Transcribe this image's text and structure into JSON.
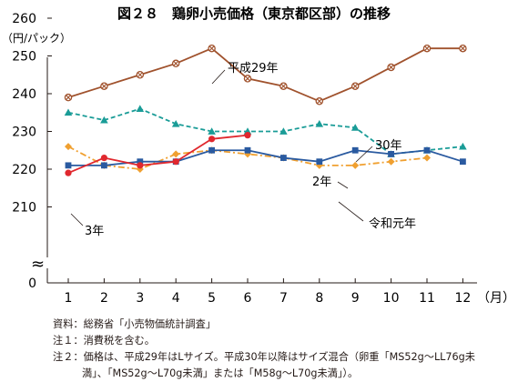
{
  "chart_data": {
    "type": "line",
    "title": "図２８　鶏卵小売価格（東京都区部）の推移",
    "ylabel": "（円/パック）",
    "xunit": "（月）",
    "categories": [
      "1",
      "2",
      "3",
      "4",
      "5",
      "6",
      "7",
      "8",
      "9",
      "10",
      "11",
      "12"
    ],
    "ylim": [
      0,
      260
    ],
    "yticks": [
      "0",
      "210",
      "220",
      "230",
      "240",
      "250",
      "260"
    ],
    "axis_break_symbol": "≈",
    "grid": false,
    "legend": "none",
    "series": [
      {
        "name": "平成29年",
        "color": "#a0522d",
        "style": "solid",
        "marker": "x-circle",
        "values": [
          239,
          242,
          245,
          248,
          252,
          244,
          242,
          238,
          242,
          247,
          252,
          252
        ]
      },
      {
        "name": "30年",
        "color": "#1a9c97",
        "style": "dashed",
        "marker": "triangle",
        "values": [
          235,
          233,
          236,
          232,
          230,
          230,
          230,
          232,
          231,
          224,
          225,
          226
        ]
      },
      {
        "name": "令和元年",
        "color": "#f0a030",
        "style": "dashdot",
        "marker": "diamond",
        "values": [
          226,
          221,
          220,
          224,
          225,
          224,
          223,
          221,
          221,
          222,
          223,
          null
        ]
      },
      {
        "name": "2年",
        "color": "#2a5aa0",
        "style": "solid",
        "marker": "square",
        "values": [
          221,
          221,
          222,
          222,
          225,
          225,
          223,
          222,
          225,
          224,
          225,
          222
        ]
      },
      {
        "name": "3年",
        "color": "#e0282e",
        "style": "solid",
        "marker": "circle",
        "values": [
          219,
          223,
          221,
          222,
          228,
          229,
          null,
          null,
          null,
          null,
          null,
          null
        ]
      }
    ]
  },
  "notes": {
    "source": "資料：総務省「小売物価統計調査」",
    "note1": "注１：消費税を含む。",
    "note2a": "注２：価格は、平成29年はLサイズ。平成30年以降はサイズ混合（卵重「MS52g～LL76g未",
    "note2b": "満」、「MS52g～L70g未満」または「M58g～L70g未満」）。"
  }
}
